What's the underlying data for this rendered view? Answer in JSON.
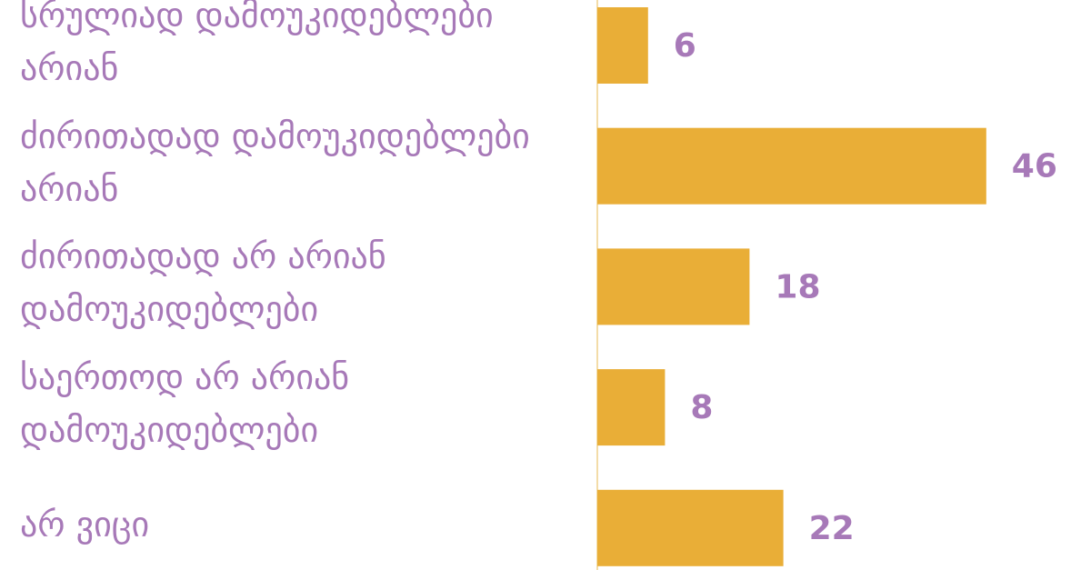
{
  "chart_data": {
    "type": "bar",
    "orientation": "horizontal",
    "categories": [
      "სრულიად დამოუკიდებლები არიან",
      "ძირითადად დამოუკიდებლები არიან",
      "ძირითადად არ არიან დამოუკიდებლები",
      "საერთოდ არ არიან დამოუკიდებლები",
      "არ ვიცი"
    ],
    "values": [
      6,
      46,
      18,
      8,
      22
    ],
    "color": "#e9ae37",
    "label_color": "#a779b8"
  }
}
